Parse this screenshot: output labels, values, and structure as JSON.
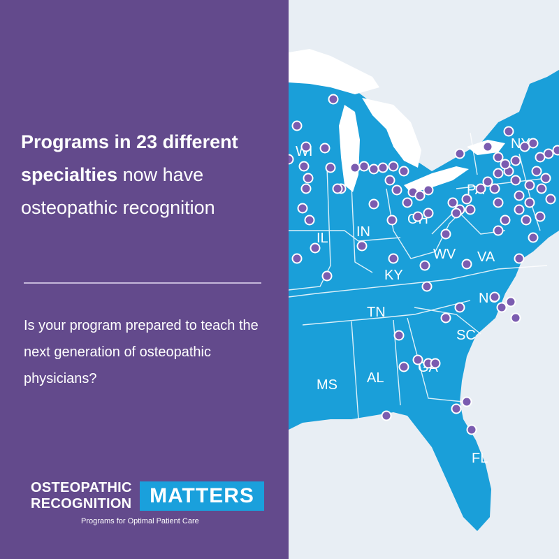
{
  "headline": {
    "bold": "Programs in 23 different specialties",
    "rest": " now have osteopathic recognition"
  },
  "question": "Is your program prepared to teach the next generation of osteopathic physicians?",
  "logo": {
    "line1": "OSTEOPATHIC",
    "line2": "RECOGNITION",
    "box": "MATTERS",
    "tagline": "Programs for Optimal Patient Care"
  },
  "map": {
    "state_labels": [
      {
        "text": "WI"
      },
      {
        "text": "IL"
      },
      {
        "text": "IN"
      },
      {
        "text": "KY"
      },
      {
        "text": "WV"
      },
      {
        "text": "VA"
      },
      {
        "text": "TN"
      },
      {
        "text": "NC"
      },
      {
        "text": "SC"
      },
      {
        "text": "MS"
      },
      {
        "text": "AL"
      },
      {
        "text": "GA"
      },
      {
        "text": "FL"
      },
      {
        "text": "PA"
      },
      {
        "text": "NY"
      },
      {
        "text": "OH"
      }
    ]
  },
  "colors": {
    "panel": "#634a8c",
    "land": "#1a9fd9",
    "lakes": "#ffffff",
    "ocean": "#e8eef4",
    "marker": "#7b5cb0",
    "logo_box": "#1aa0dc"
  }
}
